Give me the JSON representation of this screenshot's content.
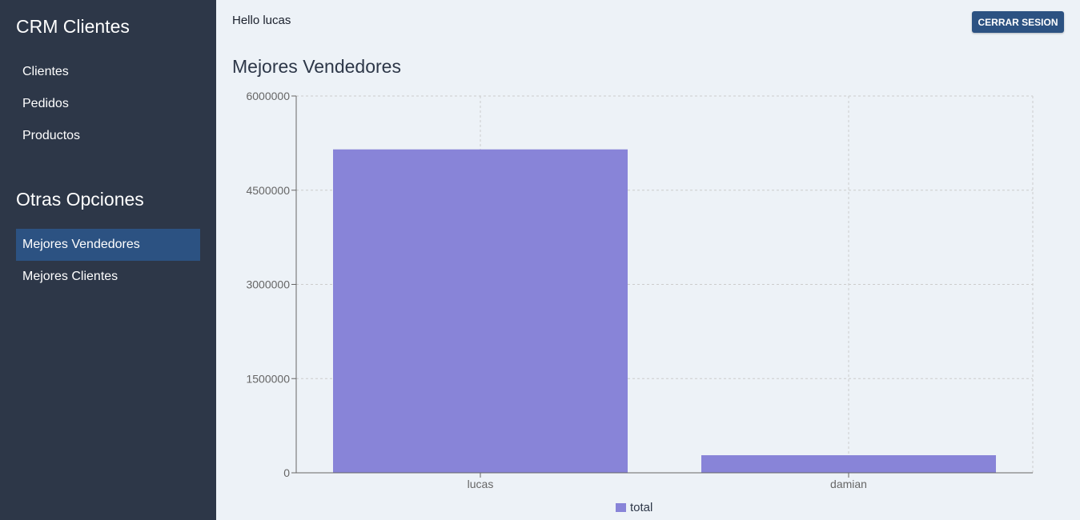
{
  "sidebar": {
    "title": "CRM Clientes",
    "items": [
      {
        "label": "Clientes"
      },
      {
        "label": "Pedidos"
      },
      {
        "label": "Productos"
      }
    ],
    "section_title": "Otras Opciones",
    "other_items": [
      {
        "label": "Mejores Vendedores",
        "active": true
      },
      {
        "label": "Mejores Clientes",
        "active": false
      }
    ]
  },
  "header": {
    "greeting": "Hello lucas",
    "logout_label": "CERRAR SESION"
  },
  "main": {
    "title": "Mejores Vendedores"
  },
  "colors": {
    "sidebar_bg": "#2d3748",
    "accent": "#2c5282",
    "bar": "#8884d8",
    "page_bg": "#edf2f7"
  },
  "chart_data": {
    "type": "bar",
    "categories": [
      "lucas",
      "damian"
    ],
    "series": [
      {
        "name": "total",
        "values": [
          5150000,
          280000
        ],
        "color": "#8884d8"
      }
    ],
    "ylim": [
      0,
      6000000
    ],
    "yticks": [
      "0",
      "1500000",
      "3000000",
      "4500000",
      "6000000"
    ],
    "grid": true,
    "legend": "bottom-center"
  }
}
